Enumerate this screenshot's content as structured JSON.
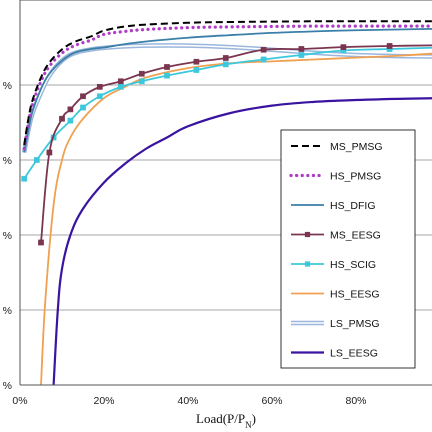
{
  "chart_data": {
    "type": "line",
    "xlabel": {
      "main": "Load(P/P",
      "sub": "N",
      "close": ")"
    },
    "xlim": [
      0,
      1.0
    ],
    "x_ticks": [
      {
        "value": 0.0,
        "label": "0%"
      },
      {
        "value": 0.2,
        "label": "20%"
      },
      {
        "value": 0.4,
        "label": "40%"
      },
      {
        "value": 0.6,
        "label": "60%"
      },
      {
        "value": 0.8,
        "label": "80%"
      }
    ],
    "ylim": [
      0,
      100
    ],
    "y_ticks": [
      {
        "value": 0,
        "label": "%"
      },
      {
        "value": 20,
        "label": "%"
      },
      {
        "value": 40,
        "label": "%"
      },
      {
        "value": 60,
        "label": "%"
      },
      {
        "value": 80,
        "label": "%"
      }
    ],
    "grid": "horizontal",
    "legend_position": "right",
    "series": [
      {
        "name": "MS_PMSG",
        "color": "#000000",
        "style": "dashed",
        "x": [
          0.01,
          0.02,
          0.03,
          0.05,
          0.07,
          0.1,
          0.13,
          0.17,
          0.2,
          0.25,
          0.3,
          0.4,
          0.5,
          0.6,
          0.7,
          0.8,
          0.9,
          1.0
        ],
        "y": [
          64,
          71,
          76,
          82,
          86,
          89.5,
          91.5,
          93,
          94.5,
          95.6,
          96.1,
          96.6,
          96.8,
          96.9,
          97.0,
          97.0,
          97.0,
          97.0
        ]
      },
      {
        "name": "HS_PMSG",
        "color": "#b03cc8",
        "style": "dotted",
        "x": [
          0.01,
          0.02,
          0.03,
          0.05,
          0.07,
          0.1,
          0.13,
          0.17,
          0.2,
          0.25,
          0.3,
          0.4,
          0.5,
          0.6,
          0.7,
          0.8,
          0.9,
          1.0
        ],
        "y": [
          63,
          70,
          75,
          81,
          85,
          88.5,
          90.5,
          92,
          93.5,
          94.3,
          94.8,
          95.3,
          95.5,
          95.6,
          95.7,
          95.7,
          95.7,
          95.7
        ]
      },
      {
        "name": "HS_DFIG",
        "color": "#3a7fa8",
        "style": "solid",
        "x": [
          0.01,
          0.02,
          0.03,
          0.05,
          0.07,
          0.1,
          0.13,
          0.17,
          0.2,
          0.25,
          0.3,
          0.4,
          0.5,
          0.6,
          0.7,
          0.8,
          0.9,
          1.0
        ],
        "y": [
          62,
          68,
          73,
          79,
          83,
          86.5,
          88.6,
          89.6,
          90.0,
          90.9,
          91.6,
          92.6,
          93.3,
          93.9,
          94.3,
          94.6,
          94.8,
          95.0
        ]
      },
      {
        "name": "MS_EESG",
        "color": "#7a3550",
        "style": "solid",
        "marker": "square",
        "x": [
          0.05,
          0.07,
          0.1,
          0.12,
          0.15,
          0.19,
          0.24,
          0.29,
          0.35,
          0.42,
          0.49,
          0.58,
          0.67,
          0.77,
          0.88,
          1.0
        ],
        "y": [
          38,
          62,
          71,
          73.5,
          77,
          79.5,
          81,
          83,
          84.8,
          86.2,
          87.2,
          89.4,
          89.6,
          90.1,
          90.4,
          90.6
        ]
      },
      {
        "name": "HS_SCIG",
        "color": "#3cc8dc",
        "style": "solid",
        "marker": "square",
        "x": [
          0.01,
          0.04,
          0.08,
          0.12,
          0.15,
          0.19,
          0.24,
          0.29,
          0.35,
          0.42,
          0.49,
          0.58,
          0.67,
          0.77,
          0.88,
          1.0
        ],
        "y": [
          55,
          60,
          66,
          70.5,
          74,
          77,
          79.5,
          81,
          82.5,
          84,
          85.5,
          86.8,
          88,
          89.2,
          89.6,
          90.0
        ]
      },
      {
        "name": "HS_EESG",
        "color": "#f0a050",
        "style": "solid",
        "x": [
          0.05,
          0.06,
          0.08,
          0.1,
          0.12,
          0.15,
          0.2,
          0.25,
          0.3,
          0.4,
          0.5,
          0.6,
          0.7,
          0.8,
          0.9,
          1.0
        ],
        "y": [
          0,
          22,
          48,
          60,
          66,
          71,
          76.5,
          79.5,
          82,
          84.5,
          85.8,
          86.3,
          86.8,
          87.3,
          87.8,
          88.5
        ]
      },
      {
        "name": "LS_PMSG",
        "color": "#9ab6dc",
        "style": "double",
        "x": [
          0.01,
          0.02,
          0.03,
          0.05,
          0.07,
          0.1,
          0.13,
          0.17,
          0.2,
          0.25,
          0.3,
          0.4,
          0.5,
          0.6,
          0.7,
          0.8,
          0.9,
          1.0
        ],
        "y": [
          62,
          68,
          72.5,
          78,
          82.5,
          86.5,
          88.5,
          89.5,
          89.9,
          90.3,
          90.5,
          90.5,
          90.1,
          89.4,
          88.6,
          88.0,
          87.7,
          87.6
        ]
      },
      {
        "name": "LS_EESG",
        "color": "#3a14a0",
        "style": "solid",
        "x": [
          0.08,
          0.09,
          0.1,
          0.12,
          0.15,
          0.2,
          0.25,
          0.3,
          0.35,
          0.4,
          0.5,
          0.6,
          0.7,
          0.8,
          0.9,
          1.0
        ],
        "y": [
          0,
          20,
          31,
          40,
          47,
          54,
          59,
          63,
          66,
          69,
          72.5,
          74.5,
          75.5,
          76,
          76.3,
          76.5
        ]
      }
    ]
  }
}
